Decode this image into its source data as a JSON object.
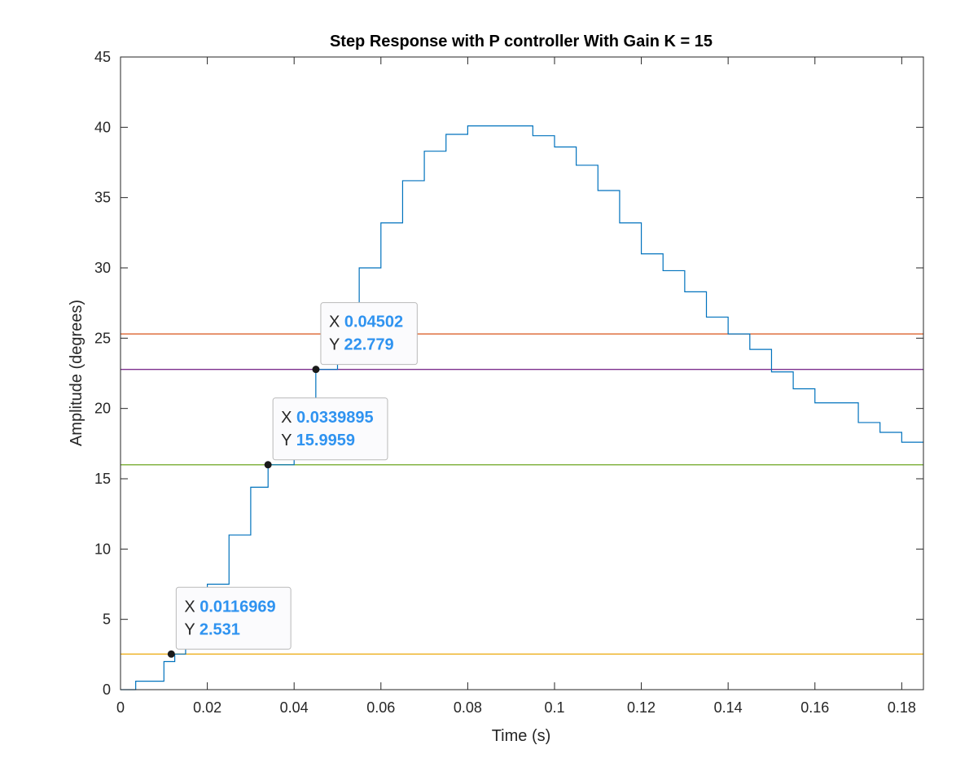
{
  "chart_data": {
    "type": "line",
    "title": "Step Response with P controller With Gain K = 15",
    "xlabel": "Time (s)",
    "ylabel": "Amplitude (degrees)",
    "xlim": [
      0,
      0.185
    ],
    "ylim": [
      0,
      45
    ],
    "xticks": [
      0,
      0.02,
      0.04,
      0.06,
      0.08,
      0.1,
      0.12,
      0.14,
      0.16,
      0.18
    ],
    "xtick_labels": [
      "0",
      "0.02",
      "0.04",
      "0.06",
      "0.08",
      "0.1",
      "0.12",
      "0.14",
      "0.16",
      "0.18"
    ],
    "yticks": [
      0,
      5,
      10,
      15,
      20,
      25,
      30,
      35,
      40,
      45
    ],
    "ytick_labels": [
      "0",
      "5",
      "10",
      "15",
      "20",
      "25",
      "30",
      "35",
      "40",
      "45"
    ],
    "grid": false,
    "series": [
      {
        "color": "#0072bd",
        "style": "stairs",
        "x": [
          0,
          0.0035,
          0.006,
          0.01,
          0.0125,
          0.015,
          0.02,
          0.025,
          0.03,
          0.034,
          0.04,
          0.045,
          0.05,
          0.055,
          0.06,
          0.065,
          0.07,
          0.075,
          0.08,
          0.085,
          0.09,
          0.095,
          0.1,
          0.105,
          0.11,
          0.115,
          0.12,
          0.125,
          0.13,
          0.135,
          0.14,
          0.145,
          0.15,
          0.155,
          0.16,
          0.165,
          0.17,
          0.175,
          0.18,
          0.185
        ],
        "y": [
          0,
          0.6,
          0.6,
          2.0,
          2.531,
          3.7,
          7.5,
          11.0,
          14.4,
          15.9959,
          19.8,
          22.779,
          26.0,
          30.0,
          33.2,
          36.2,
          38.3,
          39.5,
          40.1,
          40.1,
          40.1,
          39.4,
          38.6,
          37.3,
          35.5,
          33.2,
          31.0,
          29.8,
          28.3,
          26.5,
          25.3,
          24.2,
          22.6,
          21.4,
          20.4,
          20.4,
          19.0,
          18.3,
          17.6,
          17.6
        ]
      }
    ],
    "reference_lines": [
      {
        "y": 25.3,
        "color": "#d95319"
      },
      {
        "y": 22.779,
        "color": "#7e2f8e"
      },
      {
        "y": 15.9959,
        "color": "#77ac30"
      },
      {
        "y": 2.531,
        "color": "#edb120"
      }
    ],
    "datatips": [
      {
        "x": 0.04502,
        "y": 22.779,
        "x_text": "0.04502",
        "y_text": "22.779",
        "x_key": "X",
        "y_key": "Y"
      },
      {
        "x": 0.0339895,
        "y": 15.9959,
        "x_text": "0.0339895",
        "y_text": "15.9959",
        "x_key": "X",
        "y_key": "Y"
      },
      {
        "x": 0.0116969,
        "y": 2.531,
        "x_text": "0.0116969",
        "y_text": "2.531",
        "x_key": "X",
        "y_key": "Y"
      }
    ]
  }
}
